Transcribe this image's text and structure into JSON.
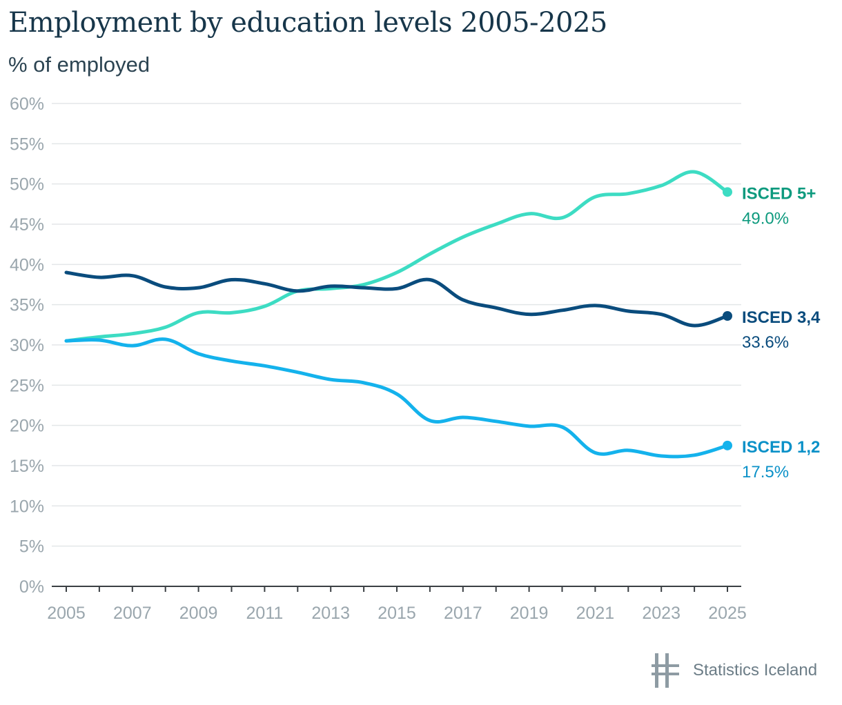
{
  "chart_data": {
    "type": "line",
    "title": "Employment by education levels 2005-2025",
    "subtitle": "% of employed",
    "xlabel": "",
    "ylabel": "",
    "x": [
      2005,
      2006,
      2007,
      2008,
      2009,
      2010,
      2011,
      2012,
      2013,
      2014,
      2015,
      2016,
      2017,
      2018,
      2019,
      2020,
      2021,
      2022,
      2023,
      2024,
      2025
    ],
    "xticks": [
      "2005",
      "2007",
      "2009",
      "2011",
      "2013",
      "2015",
      "2017",
      "2019",
      "2021",
      "2023",
      "2025"
    ],
    "ylim": [
      0,
      60
    ],
    "yticks": [
      "0%",
      "5%",
      "10%",
      "15%",
      "20%",
      "25%",
      "30%",
      "35%",
      "40%",
      "45%",
      "50%",
      "55%",
      "60%"
    ],
    "grid": true,
    "legend": "end-of-line labels",
    "series": [
      {
        "name": "ISCED 5+",
        "end_label": "49.0%",
        "color": "#3ddcc3",
        "label_color": "#0e9a7e",
        "values": [
          30.5,
          31.0,
          31.4,
          32.2,
          34.0,
          34.0,
          34.8,
          36.7,
          37.0,
          37.5,
          39.0,
          41.3,
          43.4,
          45.0,
          46.3,
          45.8,
          48.4,
          48.8,
          49.8,
          51.5,
          49.0
        ]
      },
      {
        "name": "ISCED 3,4",
        "end_label": "33.6%",
        "color": "#0a4c7d",
        "label_color": "#0a4c7d",
        "values": [
          39.0,
          38.4,
          38.6,
          37.2,
          37.1,
          38.1,
          37.6,
          36.7,
          37.3,
          37.1,
          37.0,
          38.1,
          35.6,
          34.6,
          33.8,
          34.3,
          34.9,
          34.2,
          33.8,
          32.4,
          33.6
        ]
      },
      {
        "name": "ISCED 1,2",
        "end_label": "17.5%",
        "color": "#14b2ec",
        "label_color": "#0b91c8",
        "values": [
          30.5,
          30.6,
          29.9,
          30.7,
          28.9,
          28.0,
          27.4,
          26.6,
          25.7,
          25.3,
          23.9,
          20.6,
          21.0,
          20.5,
          19.9,
          19.8,
          16.6,
          16.9,
          16.2,
          16.3,
          17.5
        ]
      }
    ]
  },
  "brand": {
    "name": "Statistics Iceland",
    "logo_icon": "statistics-iceland-logo-icon"
  }
}
